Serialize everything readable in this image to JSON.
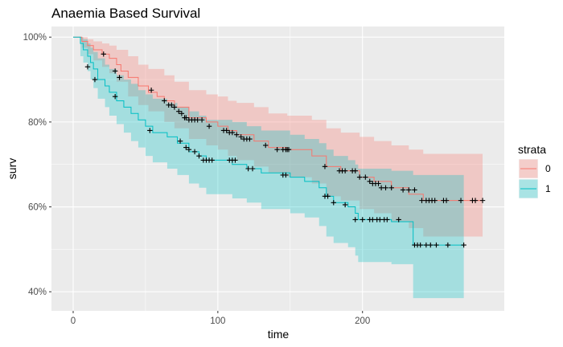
{
  "chart_data": {
    "type": "line",
    "title": "Anaemia Based Survival",
    "xlabel": "time",
    "ylabel": "surv",
    "xlim": [
      -15,
      298
    ],
    "ylim": [
      0.355,
      1.025
    ],
    "x_ticks": [
      0,
      100,
      200
    ],
    "x_tick_labels": [
      "0",
      "100",
      "200"
    ],
    "y_ticks": [
      0.4,
      0.6,
      0.8,
      1.0
    ],
    "y_tick_labels": [
      "40%",
      "60%",
      "80%",
      "100%"
    ],
    "grid": true,
    "background": "#EBEBEB",
    "legend": {
      "title": "strata",
      "position": "right"
    },
    "series": [
      {
        "name": "0",
        "color": "#F8766D",
        "fill": "#F8766D",
        "steps": [
          [
            0,
            1.0
          ],
          [
            6,
            0.99
          ],
          [
            10,
            0.98
          ],
          [
            14,
            0.97
          ],
          [
            20,
            0.96
          ],
          [
            25,
            0.95
          ],
          [
            30,
            0.935
          ],
          [
            33,
            0.92
          ],
          [
            38,
            0.905
          ],
          [
            45,
            0.885
          ],
          [
            52,
            0.87
          ],
          [
            58,
            0.86
          ],
          [
            63,
            0.85
          ],
          [
            70,
            0.835
          ],
          [
            80,
            0.81
          ],
          [
            92,
            0.8
          ],
          [
            100,
            0.79
          ],
          [
            107,
            0.78
          ],
          [
            113,
            0.77
          ],
          [
            125,
            0.755
          ],
          [
            135,
            0.74
          ],
          [
            148,
            0.735
          ],
          [
            165,
            0.72
          ],
          [
            175,
            0.695
          ],
          [
            185,
            0.685
          ],
          [
            198,
            0.67
          ],
          [
            208,
            0.66
          ],
          [
            220,
            0.645
          ],
          [
            232,
            0.63
          ],
          [
            242,
            0.615
          ],
          [
            283,
            0.615
          ]
        ],
        "upper": [
          [
            0,
            1.0
          ],
          [
            6,
            1.0
          ],
          [
            10,
            0.995
          ],
          [
            14,
            0.99
          ],
          [
            20,
            0.985
          ],
          [
            25,
            0.98
          ],
          [
            30,
            0.97
          ],
          [
            38,
            0.955
          ],
          [
            45,
            0.935
          ],
          [
            52,
            0.925
          ],
          [
            63,
            0.91
          ],
          [
            70,
            0.895
          ],
          [
            80,
            0.875
          ],
          [
            92,
            0.865
          ],
          [
            100,
            0.86
          ],
          [
            107,
            0.85
          ],
          [
            113,
            0.845
          ],
          [
            125,
            0.835
          ],
          [
            135,
            0.82
          ],
          [
            148,
            0.815
          ],
          [
            165,
            0.805
          ],
          [
            175,
            0.785
          ],
          [
            185,
            0.775
          ],
          [
            198,
            0.765
          ],
          [
            208,
            0.755
          ],
          [
            220,
            0.745
          ],
          [
            232,
            0.735
          ],
          [
            242,
            0.725
          ],
          [
            283,
            0.725
          ]
        ],
        "lower": [
          [
            0,
            1.0
          ],
          [
            6,
            0.975
          ],
          [
            10,
            0.96
          ],
          [
            14,
            0.945
          ],
          [
            20,
            0.93
          ],
          [
            25,
            0.915
          ],
          [
            30,
            0.895
          ],
          [
            38,
            0.86
          ],
          [
            45,
            0.84
          ],
          [
            52,
            0.825
          ],
          [
            63,
            0.8
          ],
          [
            70,
            0.785
          ],
          [
            80,
            0.76
          ],
          [
            92,
            0.745
          ],
          [
            100,
            0.735
          ],
          [
            107,
            0.72
          ],
          [
            113,
            0.71
          ],
          [
            125,
            0.695
          ],
          [
            135,
            0.68
          ],
          [
            148,
            0.67
          ],
          [
            165,
            0.655
          ],
          [
            175,
            0.625
          ],
          [
            185,
            0.615
          ],
          [
            198,
            0.595
          ],
          [
            208,
            0.585
          ],
          [
            220,
            0.565
          ],
          [
            232,
            0.55
          ],
          [
            242,
            0.53
          ],
          [
            283,
            0.53
          ]
        ],
        "censored": [
          [
            21,
            0.96
          ],
          [
            29,
            0.92
          ],
          [
            32,
            0.905
          ],
          [
            54,
            0.875
          ],
          [
            63,
            0.85
          ],
          [
            66,
            0.84
          ],
          [
            68,
            0.84
          ],
          [
            70,
            0.835
          ],
          [
            73,
            0.825
          ],
          [
            75,
            0.82
          ],
          [
            77,
            0.81
          ],
          [
            78,
            0.81
          ],
          [
            80,
            0.805
          ],
          [
            82,
            0.805
          ],
          [
            84,
            0.805
          ],
          [
            86,
            0.805
          ],
          [
            89,
            0.805
          ],
          [
            94,
            0.79
          ],
          [
            104,
            0.78
          ],
          [
            106,
            0.78
          ],
          [
            108,
            0.775
          ],
          [
            110,
            0.775
          ],
          [
            113,
            0.77
          ],
          [
            116,
            0.765
          ],
          [
            118,
            0.76
          ],
          [
            120,
            0.76
          ],
          [
            122,
            0.76
          ],
          [
            133,
            0.745
          ],
          [
            141,
            0.735
          ],
          [
            145,
            0.735
          ],
          [
            147,
            0.735
          ],
          [
            148,
            0.735
          ],
          [
            149,
            0.735
          ],
          [
            174,
            0.695
          ],
          [
            184,
            0.685
          ],
          [
            186,
            0.685
          ],
          [
            188,
            0.685
          ],
          [
            193,
            0.685
          ],
          [
            195,
            0.685
          ],
          [
            198,
            0.67
          ],
          [
            202,
            0.67
          ],
          [
            205,
            0.66
          ],
          [
            207,
            0.655
          ],
          [
            209,
            0.655
          ],
          [
            211,
            0.655
          ],
          [
            213,
            0.645
          ],
          [
            216,
            0.645
          ],
          [
            220,
            0.645
          ],
          [
            228,
            0.64
          ],
          [
            232,
            0.64
          ],
          [
            236,
            0.64
          ],
          [
            241,
            0.615
          ],
          [
            244,
            0.615
          ],
          [
            246,
            0.615
          ],
          [
            248,
            0.615
          ],
          [
            250,
            0.615
          ],
          [
            256,
            0.615
          ],
          [
            258,
            0.615
          ],
          [
            268,
            0.615
          ],
          [
            276,
            0.615
          ],
          [
            278,
            0.615
          ],
          [
            283,
            0.615
          ]
        ]
      },
      {
        "name": "1",
        "color": "#00BFC4",
        "fill": "#00BFC4",
        "steps": [
          [
            0,
            1.0
          ],
          [
            5,
            0.985
          ],
          [
            7,
            0.97
          ],
          [
            10,
            0.955
          ],
          [
            12,
            0.94
          ],
          [
            14,
            0.925
          ],
          [
            17,
            0.9
          ],
          [
            22,
            0.885
          ],
          [
            25,
            0.87
          ],
          [
            30,
            0.85
          ],
          [
            35,
            0.835
          ],
          [
            40,
            0.82
          ],
          [
            45,
            0.805
          ],
          [
            50,
            0.79
          ],
          [
            55,
            0.775
          ],
          [
            65,
            0.765
          ],
          [
            72,
            0.75
          ],
          [
            80,
            0.73
          ],
          [
            87,
            0.72
          ],
          [
            92,
            0.71
          ],
          [
            110,
            0.7
          ],
          [
            120,
            0.69
          ],
          [
            130,
            0.68
          ],
          [
            150,
            0.67
          ],
          [
            160,
            0.66
          ],
          [
            170,
            0.645
          ],
          [
            175,
            0.625
          ],
          [
            180,
            0.61
          ],
          [
            190,
            0.6
          ],
          [
            195,
            0.585
          ],
          [
            197,
            0.57
          ],
          [
            220,
            0.565
          ],
          [
            235,
            0.51
          ],
          [
            270,
            0.51
          ]
        ],
        "upper": [
          [
            0,
            1.0
          ],
          [
            5,
            1.0
          ],
          [
            7,
            0.995
          ],
          [
            10,
            0.985
          ],
          [
            12,
            0.975
          ],
          [
            14,
            0.965
          ],
          [
            17,
            0.95
          ],
          [
            22,
            0.935
          ],
          [
            25,
            0.925
          ],
          [
            30,
            0.91
          ],
          [
            35,
            0.9
          ],
          [
            40,
            0.89
          ],
          [
            45,
            0.875
          ],
          [
            50,
            0.865
          ],
          [
            55,
            0.855
          ],
          [
            65,
            0.845
          ],
          [
            72,
            0.835
          ],
          [
            80,
            0.825
          ],
          [
            87,
            0.815
          ],
          [
            92,
            0.805
          ],
          [
            110,
            0.8
          ],
          [
            120,
            0.79
          ],
          [
            130,
            0.78
          ],
          [
            150,
            0.77
          ],
          [
            160,
            0.76
          ],
          [
            170,
            0.75
          ],
          [
            175,
            0.735
          ],
          [
            180,
            0.72
          ],
          [
            190,
            0.71
          ],
          [
            195,
            0.7
          ],
          [
            197,
            0.69
          ],
          [
            220,
            0.685
          ],
          [
            235,
            0.675
          ],
          [
            270,
            0.675
          ]
        ],
        "lower": [
          [
            0,
            1.0
          ],
          [
            5,
            0.955
          ],
          [
            7,
            0.94
          ],
          [
            10,
            0.92
          ],
          [
            12,
            0.9
          ],
          [
            14,
            0.88
          ],
          [
            17,
            0.855
          ],
          [
            22,
            0.835
          ],
          [
            25,
            0.815
          ],
          [
            30,
            0.795
          ],
          [
            35,
            0.775
          ],
          [
            40,
            0.755
          ],
          [
            45,
            0.74
          ],
          [
            50,
            0.72
          ],
          [
            55,
            0.705
          ],
          [
            65,
            0.69
          ],
          [
            72,
            0.675
          ],
          [
            80,
            0.655
          ],
          [
            87,
            0.645
          ],
          [
            92,
            0.63
          ],
          [
            110,
            0.62
          ],
          [
            120,
            0.61
          ],
          [
            130,
            0.595
          ],
          [
            150,
            0.585
          ],
          [
            160,
            0.575
          ],
          [
            170,
            0.555
          ],
          [
            175,
            0.53
          ],
          [
            180,
            0.515
          ],
          [
            190,
            0.505
          ],
          [
            195,
            0.485
          ],
          [
            197,
            0.47
          ],
          [
            220,
            0.465
          ],
          [
            235,
            0.385
          ],
          [
            270,
            0.385
          ]
        ],
        "censored": [
          [
            10,
            0.93
          ],
          [
            15,
            0.9
          ],
          [
            29,
            0.86
          ],
          [
            53,
            0.78
          ],
          [
            74,
            0.755
          ],
          [
            78,
            0.74
          ],
          [
            80,
            0.735
          ],
          [
            84,
            0.73
          ],
          [
            87,
            0.72
          ],
          [
            90,
            0.71
          ],
          [
            92,
            0.71
          ],
          [
            94,
            0.71
          ],
          [
            96,
            0.71
          ],
          [
            108,
            0.71
          ],
          [
            110,
            0.71
          ],
          [
            112,
            0.71
          ],
          [
            121,
            0.69
          ],
          [
            124,
            0.69
          ],
          [
            145,
            0.675
          ],
          [
            147,
            0.675
          ],
          [
            174,
            0.625
          ],
          [
            176,
            0.625
          ],
          [
            180,
            0.61
          ],
          [
            188,
            0.605
          ],
          [
            195,
            0.57
          ],
          [
            200,
            0.57
          ],
          [
            205,
            0.57
          ],
          [
            207,
            0.57
          ],
          [
            210,
            0.57
          ],
          [
            212,
            0.57
          ],
          [
            215,
            0.57
          ],
          [
            217,
            0.57
          ],
          [
            225,
            0.57
          ],
          [
            236,
            0.51
          ],
          [
            238,
            0.51
          ],
          [
            240,
            0.51
          ],
          [
            244,
            0.51
          ],
          [
            247,
            0.51
          ],
          [
            251,
            0.51
          ],
          [
            259,
            0.51
          ],
          [
            270,
            0.51
          ]
        ]
      }
    ]
  }
}
